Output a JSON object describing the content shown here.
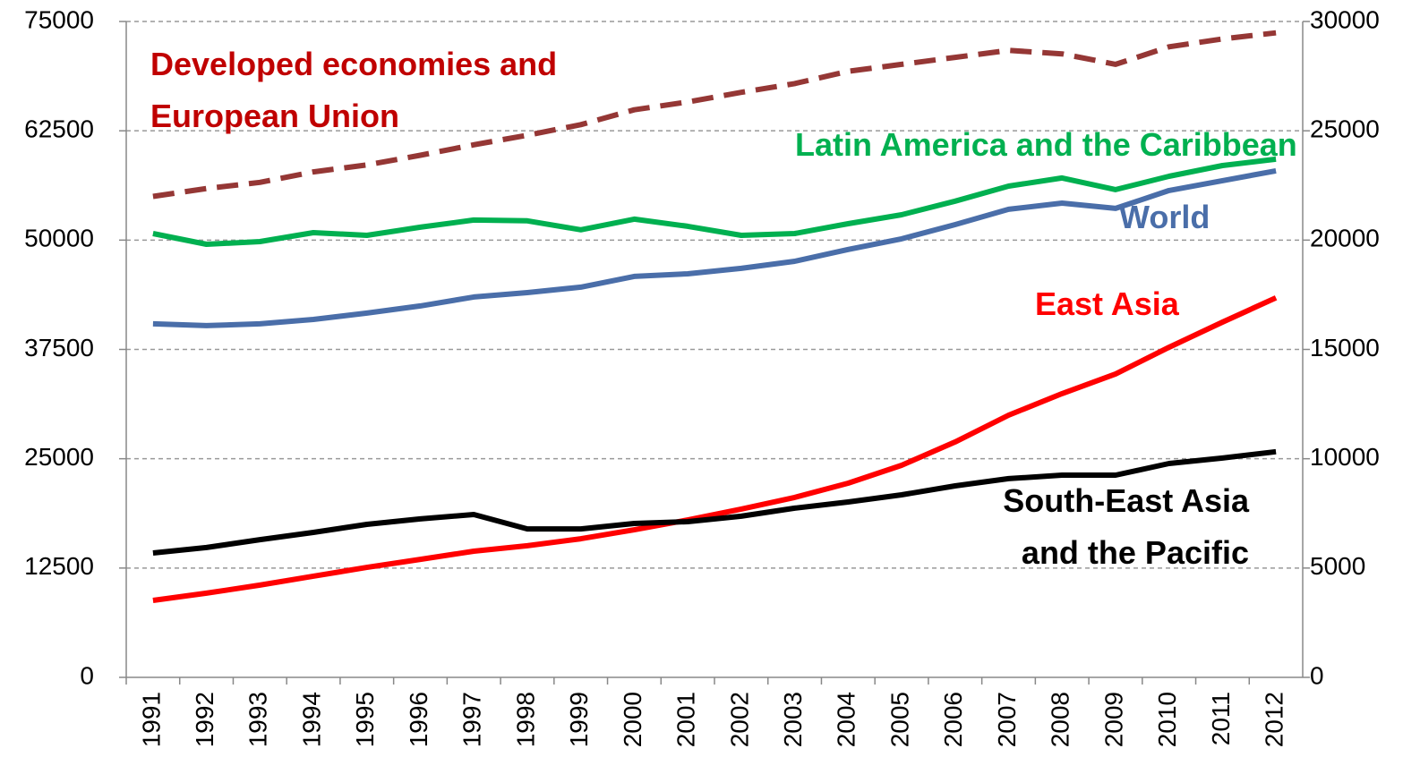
{
  "chart_data": {
    "type": "line",
    "categories": [
      "1991",
      "1992",
      "1993",
      "1994",
      "1995",
      "1996",
      "1997",
      "1998",
      "1999",
      "2000",
      "2001",
      "2002",
      "2003",
      "2004",
      "2005",
      "2006",
      "2007",
      "2008",
      "2009",
      "2010",
      "2011",
      "2012"
    ],
    "series": [
      {
        "name": "Developed economies and European Union",
        "color": "#953735",
        "dashed": true,
        "values": [
          55000,
          55900,
          56600,
          57800,
          58600,
          59700,
          60900,
          62000,
          63200,
          64900,
          65800,
          66900,
          67900,
          69300,
          70100,
          70900,
          71700,
          71300,
          70100,
          72100,
          73000,
          73700
        ]
      },
      {
        "name": "Latin America and the Caribbean",
        "color": "#00b050",
        "axis": "y2",
        "values": [
          20300,
          19810,
          19930,
          20340,
          20220,
          20590,
          20920,
          20880,
          20470,
          20960,
          20630,
          20220,
          20300,
          20750,
          21160,
          21780,
          22470,
          22840,
          22310,
          22920,
          23410,
          23700
        ]
      },
      {
        "name": "World",
        "color": "#4a6ea9",
        "axis": "y2",
        "values": [
          16170,
          16090,
          16170,
          16370,
          16660,
          16990,
          17400,
          17600,
          17850,
          18340,
          18460,
          18710,
          19030,
          19570,
          20060,
          20710,
          21410,
          21690,
          21450,
          22270,
          22720,
          23170
        ]
      },
      {
        "name": "East Asia",
        "color": "#ff0000",
        "axis": "y2",
        "values": [
          3520,
          3850,
          4220,
          4630,
          5030,
          5400,
          5770,
          6020,
          6340,
          6750,
          7200,
          7700,
          8230,
          8880,
          9700,
          10770,
          11990,
          12980,
          13880,
          15100,
          16250,
          17360
        ]
      },
      {
        "name": "South-East Asia and the Pacific",
        "color": "#000000",
        "axis": "y2",
        "values": [
          5690,
          5940,
          6300,
          6630,
          7000,
          7250,
          7450,
          6790,
          6790,
          7040,
          7120,
          7370,
          7740,
          8020,
          8350,
          8760,
          9090,
          9250,
          9250,
          9780,
          10030,
          10320
        ]
      }
    ],
    "ylim": [
      0,
      75000
    ],
    "yticks": [
      0,
      12500,
      25000,
      37500,
      50000,
      62500,
      75000
    ],
    "y2lim": [
      0,
      30000
    ],
    "y2ticks": [
      0,
      5000,
      10000,
      15000,
      20000,
      25000,
      30000
    ],
    "grid": true
  }
}
